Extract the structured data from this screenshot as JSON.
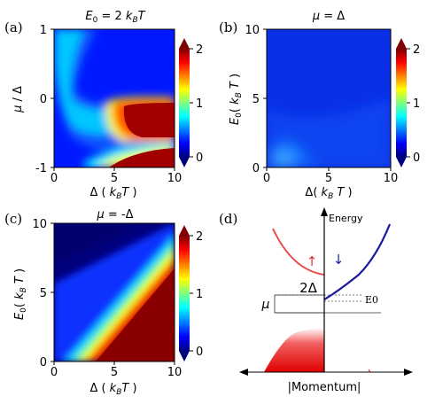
{
  "colormap_stops": [
    "#00007f",
    "#0000ff",
    "#007fff",
    "#00ffff",
    "#7fff7f",
    "#ffff00",
    "#ff7f00",
    "#ff0000",
    "#7f0000"
  ],
  "chart_data": [
    {
      "type": "heatmap",
      "panel_label": "(a)",
      "title": "E0 = 2 kBT",
      "xlabel": "Δ ( kBT )",
      "ylabel": "μ / Δ",
      "xlim": [
        0,
        10
      ],
      "ylim": [
        -1,
        1
      ],
      "x_ticks": [
        "0",
        "5",
        "10"
      ],
      "y_ticks": [
        "-1",
        "0",
        "1"
      ],
      "colorbar": {
        "range": [
          0,
          2
        ],
        "ticks": [
          "0",
          "1",
          "2"
        ],
        "extend": "both"
      }
    },
    {
      "type": "heatmap",
      "panel_label": "(b)",
      "title": "μ = Δ",
      "xlabel": "Δ( kB T )",
      "ylabel": "E0( kB T )",
      "xlim": [
        0,
        10
      ],
      "ylim": [
        0,
        10
      ],
      "x_ticks": [
        "0",
        "5",
        "10"
      ],
      "y_ticks": [
        "0",
        "5",
        "10"
      ],
      "colorbar": {
        "range": [
          0,
          2
        ],
        "ticks": [
          "0",
          "1",
          "2"
        ],
        "extend": "both"
      }
    },
    {
      "type": "heatmap",
      "panel_label": "(c)",
      "title": "μ = -Δ",
      "xlabel": "Δ ( kBT )",
      "ylabel": "E0( kB T )",
      "xlim": [
        0,
        10
      ],
      "ylim": [
        0,
        10
      ],
      "x_ticks": [
        "0",
        "5",
        "10"
      ],
      "y_ticks": [
        "0",
        "5",
        "10"
      ],
      "colorbar": {
        "range": [
          0,
          2
        ],
        "ticks": [
          "0",
          "1",
          "2"
        ],
        "extend": "both"
      }
    }
  ],
  "diagram_d": {
    "panel_label": "(d)",
    "y_axis_label": "Energy",
    "x_axis_label": "|Momentum|",
    "gap_label": "2Δ",
    "mu_label": "μ",
    "e0_label": "E0",
    "spin_up": "↑",
    "spin_down": "↓"
  }
}
